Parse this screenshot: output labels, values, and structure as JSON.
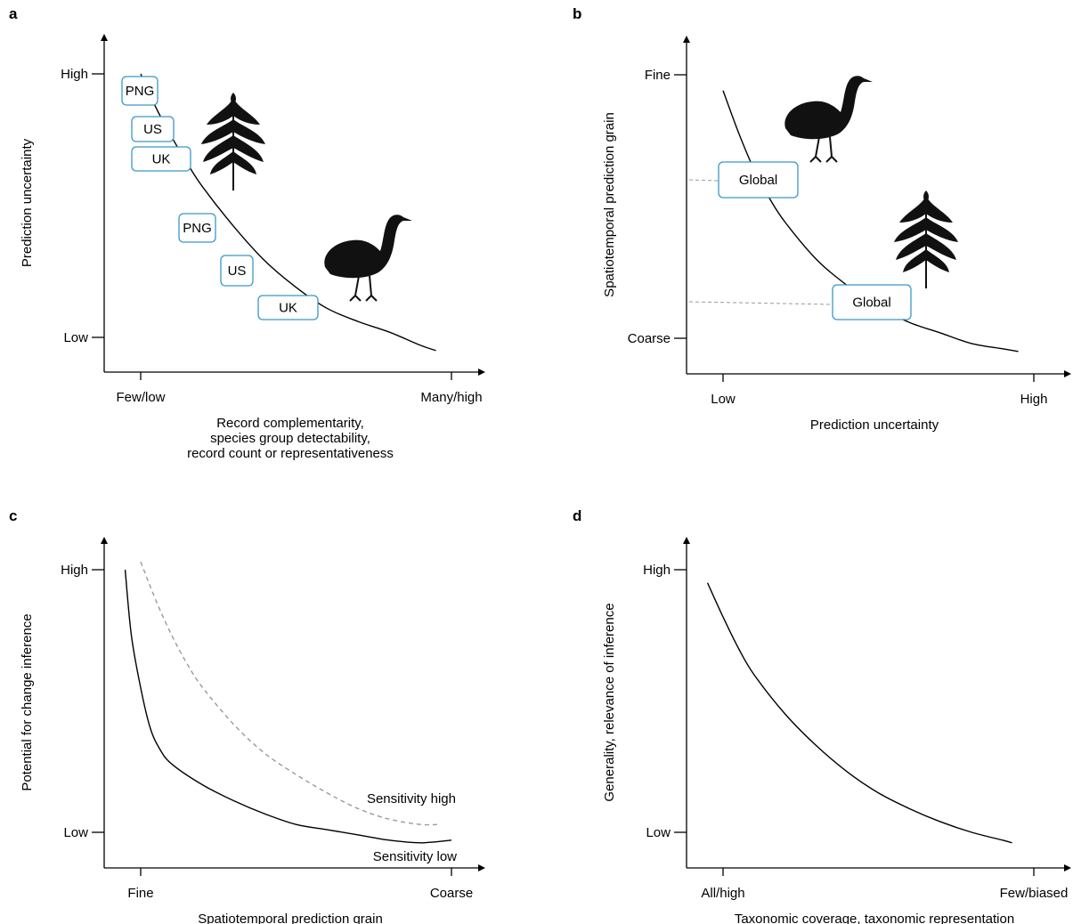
{
  "chart_data": [
    {
      "panel": "a",
      "type": "line",
      "ylabel": "Prediction uncertainty",
      "xlabel_lines": [
        "Record complementarity,",
        "species group detectability,",
        "record count or representativeness"
      ],
      "x_ticks": [
        "Few/low",
        "Many/high"
      ],
      "y_ticks": [
        "High",
        "Low"
      ],
      "series": [
        {
          "x": [
            0.0,
            0.05,
            0.1,
            0.15,
            0.2,
            0.3,
            0.4,
            0.5,
            0.6,
            0.7,
            0.8,
            0.9,
            0.95
          ],
          "y": [
            1.0,
            0.87,
            0.76,
            0.66,
            0.57,
            0.42,
            0.29,
            0.19,
            0.11,
            0.06,
            0.02,
            -0.03,
            -0.05
          ]
        }
      ],
      "annotations": [
        {
          "label": "PNG",
          "group": "fern"
        },
        {
          "label": "US",
          "group": "fern"
        },
        {
          "label": "UK",
          "group": "fern"
        },
        {
          "label": "PNG",
          "group": "bird"
        },
        {
          "label": "US",
          "group": "bird"
        },
        {
          "label": "UK",
          "group": "bird"
        }
      ],
      "icons": [
        "fern-icon",
        "crane-icon"
      ]
    },
    {
      "panel": "b",
      "type": "line",
      "ylabel": "Spatiotemporal prediction grain",
      "xlabel": "Prediction uncertainty",
      "x_ticks": [
        "Low",
        "High"
      ],
      "y_ticks": [
        "Fine",
        "Coarse"
      ],
      "series": [
        {
          "x": [
            0.0,
            0.05,
            0.1,
            0.15,
            0.2,
            0.3,
            0.4,
            0.5,
            0.6,
            0.7,
            0.8,
            0.9,
            0.95
          ],
          "y": [
            0.94,
            0.78,
            0.64,
            0.53,
            0.44,
            0.3,
            0.2,
            0.12,
            0.06,
            0.02,
            -0.02,
            -0.04,
            -0.05
          ]
        }
      ],
      "annotations": [
        {
          "label": "Global",
          "group": "bird"
        },
        {
          "label": "Global",
          "group": "fern"
        }
      ],
      "icons": [
        "crane-icon",
        "fern-icon"
      ]
    },
    {
      "panel": "c",
      "type": "line",
      "ylabel": "Potential for change inference",
      "xlabel": "Spatiotemporal prediction grain",
      "x_ticks": [
        "Fine",
        "Coarse"
      ],
      "y_ticks": [
        "High",
        "Low"
      ],
      "series": [
        {
          "name": "Sensitivity high",
          "style": "dashed",
          "color": "#9a9a9a",
          "x": [
            0.0,
            0.05,
            0.1,
            0.15,
            0.2,
            0.3,
            0.4,
            0.5,
            0.6,
            0.7,
            0.8,
            0.9,
            0.96
          ],
          "y": [
            1.03,
            0.88,
            0.75,
            0.64,
            0.55,
            0.41,
            0.3,
            0.22,
            0.15,
            0.09,
            0.05,
            0.03,
            0.03
          ]
        },
        {
          "name": "Sensitivity low",
          "style": "solid",
          "color": "#000000",
          "x": [
            -0.05,
            -0.03,
            0.0,
            0.03,
            0.06,
            0.1,
            0.2,
            0.3,
            0.4,
            0.5,
            0.6,
            0.7,
            0.8,
            0.9,
            1.0
          ],
          "y": [
            1.0,
            0.75,
            0.55,
            0.4,
            0.32,
            0.26,
            0.18,
            0.12,
            0.07,
            0.03,
            0.01,
            -0.01,
            -0.03,
            -0.04,
            -0.03
          ]
        }
      ]
    },
    {
      "panel": "d",
      "type": "line",
      "ylabel": "Generality, relevance of inference",
      "xlabel": "Taxonomic coverage, taxonomic representation",
      "x_ticks": [
        "All/high",
        "Few/biased"
      ],
      "y_ticks": [
        "High",
        "Low"
      ],
      "series": [
        {
          "x": [
            -0.05,
            0.0,
            0.05,
            0.1,
            0.2,
            0.3,
            0.4,
            0.5,
            0.6,
            0.7,
            0.8,
            0.9,
            0.93
          ],
          "y": [
            0.95,
            0.82,
            0.7,
            0.6,
            0.45,
            0.33,
            0.23,
            0.15,
            0.09,
            0.04,
            0.0,
            -0.03,
            -0.04
          ]
        }
      ]
    }
  ]
}
